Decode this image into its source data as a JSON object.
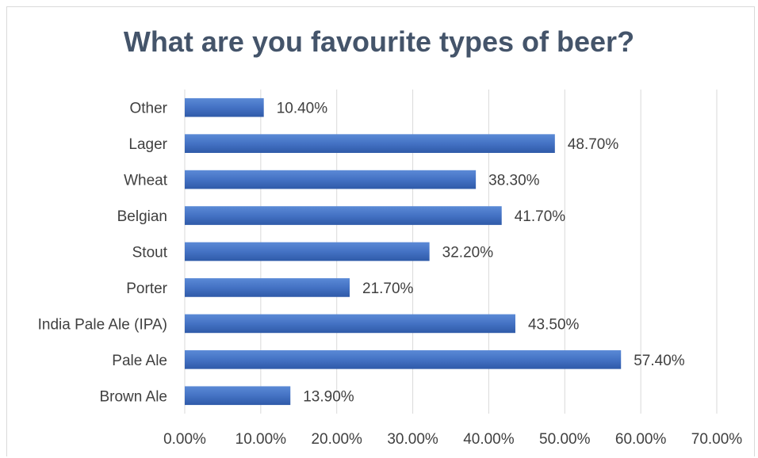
{
  "chart_data": {
    "type": "bar",
    "orientation": "horizontal",
    "title": "What are you favourite types of beer?",
    "categories": [
      "Other",
      "Lager",
      "Wheat",
      "Belgian",
      "Stout",
      "Porter",
      "India Pale Ale (IPA)",
      "Pale Ale",
      "Brown Ale"
    ],
    "values": [
      10.4,
      48.7,
      38.3,
      41.7,
      32.2,
      21.7,
      43.5,
      57.4,
      13.9
    ],
    "data_labels": [
      "10.40%",
      "48.70%",
      "38.30%",
      "41.70%",
      "32.20%",
      "21.70%",
      "43.50%",
      "57.40%",
      "13.90%"
    ],
    "xlim": [
      0,
      70
    ],
    "x_ticks": [
      0,
      10,
      20,
      30,
      40,
      50,
      60,
      70
    ],
    "x_tick_labels": [
      "0.00%",
      "10.00%",
      "20.00%",
      "30.00%",
      "40.00%",
      "50.00%",
      "60.00%",
      "70.00%"
    ],
    "grid": true,
    "legend": "none",
    "colors": {
      "bar": "#4472c4",
      "bar_dark": "#2f5aa8",
      "grid": "#d9d9d9",
      "title": "#44546a",
      "text": "#404040"
    }
  }
}
